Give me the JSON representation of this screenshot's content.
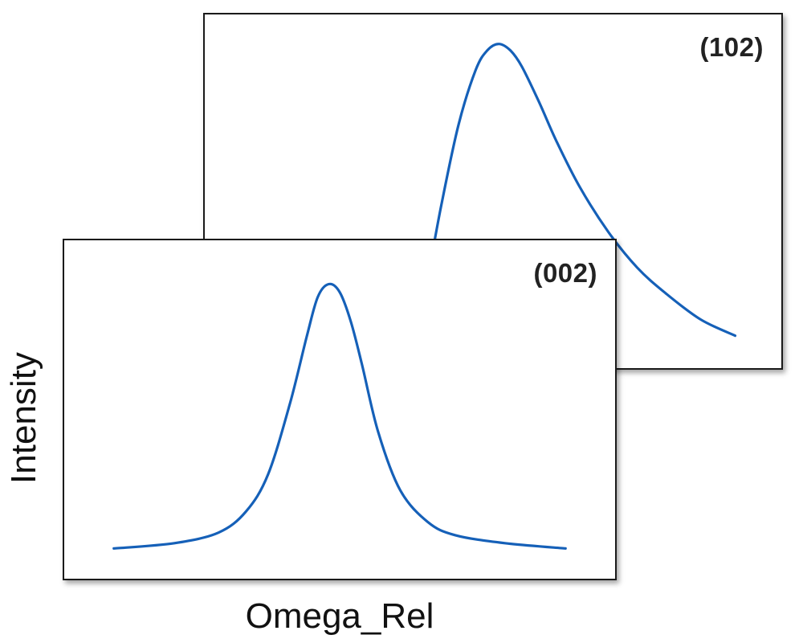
{
  "colors": {
    "curve": "#1560b8",
    "frame": "#1a1a1a"
  },
  "axes": {
    "xlabel": "Omega_Rel",
    "ylabel": "Intensity"
  },
  "chart_data": [
    {
      "type": "line",
      "title": "(102)",
      "xlabel": "Omega_Rel",
      "ylabel": "Intensity",
      "xlim": [
        0,
        1
      ],
      "ylim": [
        0,
        1
      ],
      "series": [
        {
          "x": [
            0.35,
            0.38,
            0.41,
            0.44,
            0.47,
            0.49,
            0.51,
            0.53,
            0.55,
            0.58,
            0.61,
            0.65,
            0.7,
            0.75,
            0.8,
            0.86,
            0.92
          ],
          "values": [
            0.0,
            0.22,
            0.5,
            0.75,
            0.92,
            0.98,
            1.0,
            0.98,
            0.93,
            0.82,
            0.7,
            0.56,
            0.42,
            0.31,
            0.23,
            0.15,
            0.1
          ]
        }
      ]
    },
    {
      "type": "line",
      "title": "(002)",
      "xlabel": "Omega_Rel",
      "ylabel": "Intensity",
      "xlim": [
        0,
        1
      ],
      "ylim": [
        0,
        1
      ],
      "series": [
        {
          "x": [
            0.09,
            0.2,
            0.28,
            0.33,
            0.37,
            0.41,
            0.44,
            0.46,
            0.48,
            0.5,
            0.52,
            0.54,
            0.57,
            0.61,
            0.66,
            0.71,
            0.8,
            0.91
          ],
          "values": [
            0.0,
            0.02,
            0.06,
            0.14,
            0.28,
            0.55,
            0.8,
            0.95,
            1.0,
            0.97,
            0.86,
            0.7,
            0.44,
            0.22,
            0.1,
            0.05,
            0.02,
            0.0
          ]
        }
      ]
    }
  ]
}
